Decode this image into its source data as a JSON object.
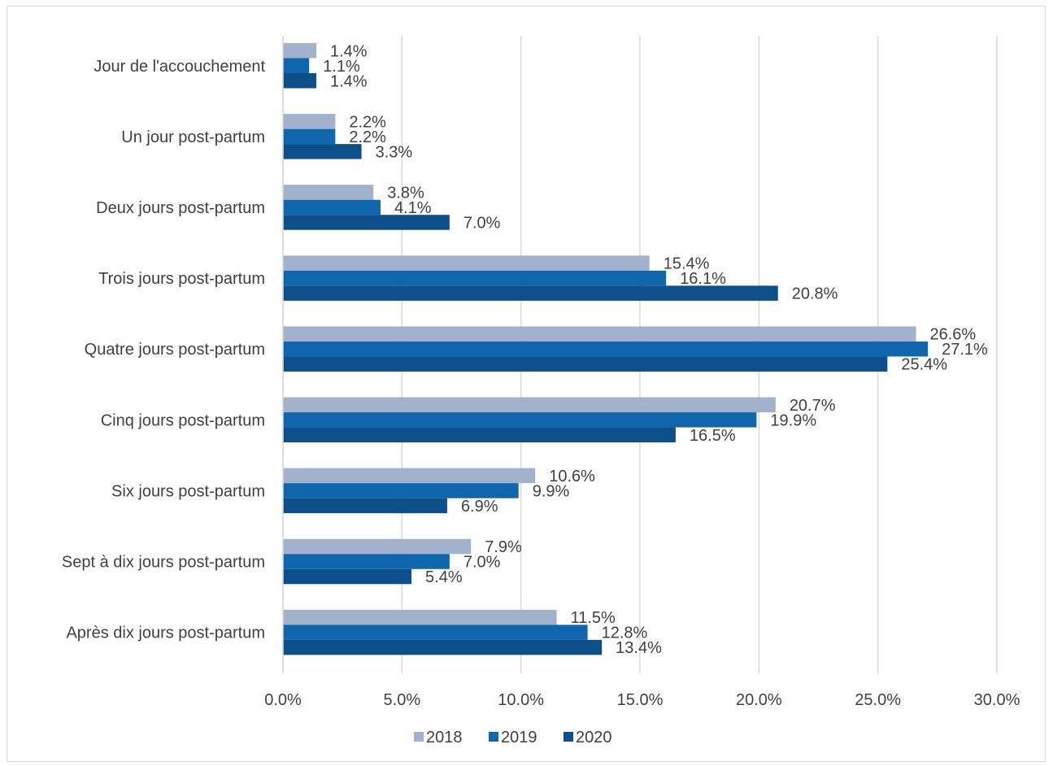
{
  "chart_data": {
    "type": "bar",
    "orientation": "horizontal",
    "categories": [
      "Jour de l'accouchement",
      "Un jour post-partum",
      "Deux jours post-partum",
      "Trois jours post-partum",
      "Quatre jours post-partum",
      "Cinq jours post-partum",
      "Six jours post-partum",
      "Sept à dix jours post-partum",
      "Après dix jours post-partum"
    ],
    "series": [
      {
        "name": "2018",
        "color": "#a2b1cc",
        "values": [
          1.4,
          2.2,
          3.8,
          15.4,
          26.6,
          20.7,
          10.6,
          7.9,
          11.5
        ],
        "labels": [
          "1.4%",
          "2.2%",
          "3.8%",
          "15.4%",
          "26.6%",
          "20.7%",
          "10.6%",
          "7.9%",
          "11.5%"
        ]
      },
      {
        "name": "2019",
        "color": "#0f66ad",
        "values": [
          1.1,
          2.2,
          4.1,
          16.1,
          27.1,
          19.9,
          9.9,
          7.0,
          12.8
        ],
        "labels": [
          "1.1%",
          "2.2%",
          "4.1%",
          "16.1%",
          "27.1%",
          "19.9%",
          "9.9%",
          "7.0%",
          "12.8%"
        ]
      },
      {
        "name": "2020",
        "color": "#0d4f8a",
        "values": [
          1.4,
          3.3,
          7.0,
          20.8,
          25.4,
          16.5,
          6.9,
          5.4,
          13.4
        ],
        "labels": [
          "1.4%",
          "3.3%",
          "7.0%",
          "20.8%",
          "25.4%",
          "16.5%",
          "6.9%",
          "5.4%",
          "13.4%"
        ]
      }
    ],
    "xlim": [
      0,
      30
    ],
    "x_ticks": [
      "0.0%",
      "5.0%",
      "10.0%",
      "15.0%",
      "20.0%",
      "25.0%",
      "30.0%"
    ],
    "grid": "vertical",
    "legend": "bottom",
    "title": "",
    "xlabel": "",
    "ylabel": ""
  }
}
